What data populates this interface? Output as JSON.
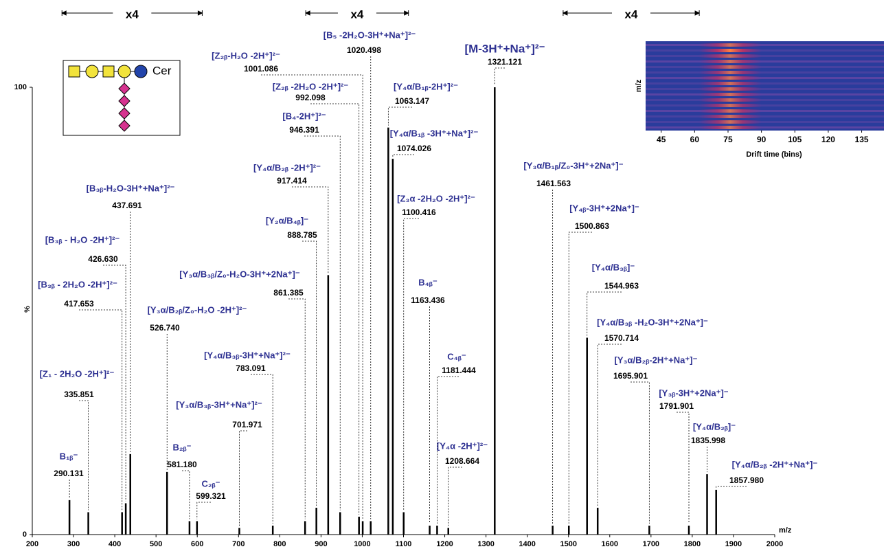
{
  "chart_data": [
    {
      "type": "spectrum",
      "xlabel": "m/z",
      "ylabel": "%",
      "xlim": [
        200,
        2000
      ],
      "xticks": [
        200,
        300,
        400,
        500,
        600,
        700,
        800,
        900,
        1000,
        1100,
        1200,
        1300,
        1400,
        1500,
        1600,
        1700,
        1800,
        1900,
        2000
      ],
      "ylim": [
        0,
        100
      ],
      "yticks": [
        0,
        100
      ],
      "color": "#000000",
      "label_color": "#2e3192",
      "x": [
        290.131,
        335.851,
        417.653,
        426.63,
        437.691,
        526.74,
        581.18,
        599.321,
        701.971,
        783.091,
        861.385,
        888.785,
        917.414,
        946.391,
        992.098,
        1001.086,
        1020.498,
        1063.147,
        1074.026,
        1100.416,
        1163.436,
        1181.444,
        1208.664,
        1321.121,
        1461.563,
        1500.863,
        1544.963,
        1570.714,
        1695.901,
        1791.901,
        1835.998,
        1857.98
      ],
      "x_labels": [
        "290.131",
        "335.851",
        "417.653",
        "426.630",
        "437.691",
        "526.740",
        "581.180",
        "599.321",
        "701.971",
        "783.091",
        "861.385",
        "888.785",
        "917.414",
        "946.391",
        "992.098",
        "1001.086",
        "1020.498",
        "1063.147",
        "1074.026",
        "1100.416",
        "1163.436",
        "1181.444",
        "1208.664",
        "1321.121",
        "1461.563",
        "1500.863",
        "1544.963",
        "1570.714",
        "1695.901",
        "1791.901",
        "1835.998",
        "1857.980"
      ],
      "values": [
        7.7,
        5,
        5,
        7,
        18,
        14,
        3,
        3,
        1.5,
        2,
        3,
        6,
        58,
        5,
        4,
        3,
        3,
        91,
        84,
        5,
        2,
        2,
        1.5,
        100,
        2,
        2,
        44,
        6,
        2,
        2,
        13.5,
        10
      ],
      "ion_labels": [
        "B₁ᵦ⁻",
        "[Z₁ - 2H₂O -2H⁺]²⁻",
        "[B₃ᵦ - 2H₂O -2H⁺]²⁻",
        "[B₃ᵦ - H₂O -2H⁺]²⁻",
        "[B₃ᵦ-H₂O-3H⁺+Na⁺]²⁻",
        "[Y₃α/B₂ᵦ/Z₀-H₂O -2H⁺]²⁻",
        "B₂ᵦ⁻",
        "C₂ᵦ⁻",
        "[Y₃α/B₃ᵦ-3H⁺+Na⁺]²⁻",
        "[Y₄α/B₃ᵦ-3H⁺+Na⁺]²⁻",
        "[Y₃α/B₃ᵦ/Z₀-H₂O-3H⁺+2Na⁺]⁻",
        "[Y₂α/B₄ᵦ]⁻",
        "[Y₄α/B₂ᵦ -2H⁺]²⁻",
        "[B₄-2H⁺]²⁻",
        "[Z₂ᵦ -2H₂O -2H⁺]²⁻",
        "[Z₂ᵦ-H₂O -2H⁺]²⁻",
        "[B₅ -2H₂O-3H⁺+Na⁺]²⁻",
        "[Y₄α/B₁ᵦ-2H⁺]²⁻",
        "[Y₄α/B₁ᵦ -3H⁺+Na⁺]²⁻",
        "[Z₃α -2H₂O -2H⁺]²⁻",
        "B₄ᵦ⁻",
        "C₄ᵦ⁻",
        "[Y₄α -2H⁺]²⁻",
        "[M-3H⁺+Na⁺]²⁻",
        "[Y₃α/B₁ᵦ/Z₀-3H⁺+2Na⁺]⁻",
        "[Y₄ᵦ-3H⁺+2Na⁺]⁻",
        "[Y₄α/B₃ᵦ]⁻",
        "[Y₄α/B₃ᵦ -H₂O-3H⁺+2Na⁺]⁻",
        "[Y₃α/B₂ᵦ-2H⁺+Na⁺]⁻",
        "[Y₃ᵦ-3H⁺+2Na⁺]⁻",
        "[Y₄α/B₂ᵦ]⁻",
        "[Y₄α/B₂ᵦ -2H⁺+Na⁺]⁻"
      ],
      "zoom_regions": [
        {
          "label": "x4",
          "range": [
            272,
            612
          ]
        },
        {
          "label": "x4",
          "range": [
            863,
            1112
          ]
        },
        {
          "label": "x4",
          "range": [
            1487,
            1817
          ]
        }
      ]
    },
    {
      "type": "heatmap",
      "xlabel": "Drift time (bins)",
      "ylabel": "m/z",
      "xlim": [
        38,
        145
      ],
      "xticks": [
        45,
        60,
        75,
        90,
        105,
        120,
        135
      ]
    }
  ],
  "glycan": {
    "label": "Cer"
  }
}
